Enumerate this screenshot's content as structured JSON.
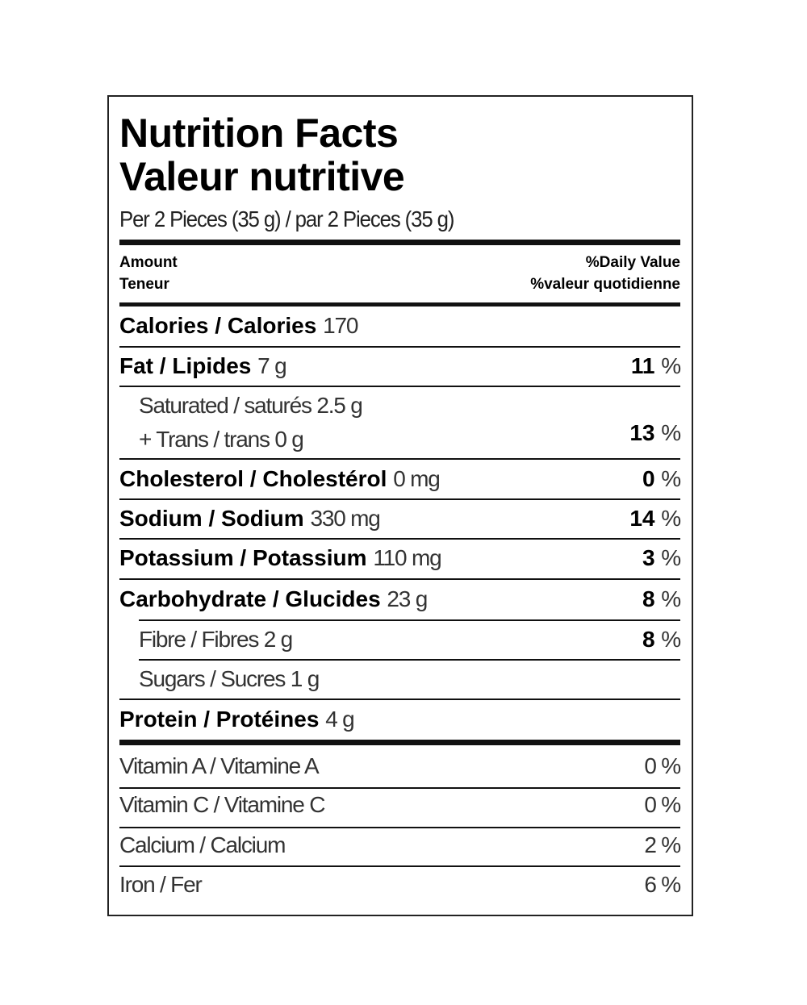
{
  "title_en": "Nutrition Facts",
  "title_fr": "Valeur nutritive",
  "serving": "Per 2 Pieces (35 g) / par 2 Pieces (35 g)",
  "header": {
    "amount_en": "Amount",
    "amount_fr": "Teneur",
    "dv_en": "%Daily Value",
    "dv_fr": "%valeur quotidienne"
  },
  "calories": {
    "label": "Calories / Calories",
    "value": "170"
  },
  "nutrients": [
    {
      "label": "Fat / Lipides",
      "value": "7 g",
      "dv": "11",
      "unit": "%"
    },
    {
      "label": "Saturated / saturés 2.5 g",
      "label2": "+ Trans / trans 0 g",
      "dv": "13",
      "unit": "%"
    },
    {
      "label": "Cholesterol / Cholestérol",
      "value": "0 mg",
      "dv": "0",
      "unit": "%"
    },
    {
      "label": "Sodium / Sodium",
      "value": "330 mg",
      "dv": "14",
      "unit": "%"
    },
    {
      "label": "Potassium / Potassium",
      "value": "110 mg",
      "dv": "3",
      "unit": "%"
    },
    {
      "label": "Carbohydrate / Glucides",
      "value": "23 g",
      "dv": "8",
      "unit": "%"
    },
    {
      "label": "Fibre / Fibres 2 g",
      "dv": "8",
      "unit": "%"
    },
    {
      "label": "Sugars / Sucres 1 g"
    },
    {
      "label": "Protein / Protéines",
      "value": "4 g"
    }
  ],
  "vitamins": [
    {
      "label": "Vitamin A / Vitamine A",
      "dv": "0 %"
    },
    {
      "label": "Vitamin C / Vitamine C",
      "dv": "0 %"
    },
    {
      "label": "Calcium / Calcium",
      "dv": "2 %"
    },
    {
      "label": "Iron / Fer",
      "dv": "6 %"
    }
  ]
}
